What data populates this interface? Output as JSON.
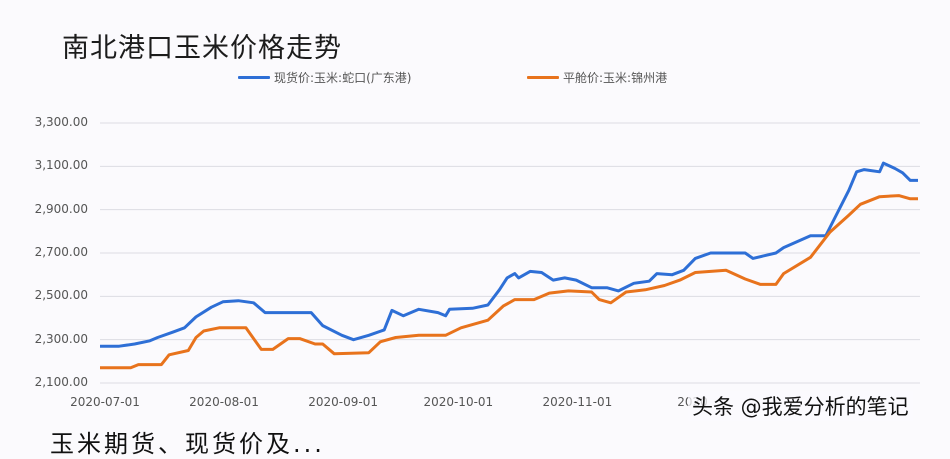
{
  "title": "南北港口玉米价格走势",
  "legend": [
    {
      "label": "现货价:玉米:蛇口(广东港)",
      "color": "#2e6fd6"
    },
    {
      "label": "平舱价:玉米:锦州港",
      "color": "#e8731c"
    }
  ],
  "watermark": "头条 @我爱分析的笔记",
  "bottom_caption": "玉米期货、现货价及...",
  "chart_data": {
    "type": "line",
    "title": "南北港口玉米价格走势",
    "xlabel": "",
    "ylabel": "",
    "ylim": [
      2100,
      3300
    ],
    "yticks": [
      "3,300.00",
      "3,100.00",
      "2,900.00",
      "2,700.00",
      "2,500.00",
      "2,300.00",
      "2,100.00"
    ],
    "ytick_values": [
      3300,
      3100,
      2900,
      2700,
      2500,
      2300,
      2100
    ],
    "xticks": [
      "2020-07-01",
      "2020-08-01",
      "2020-09-01",
      "2020-10-01",
      "2020-11-01",
      "2020-12-01"
    ],
    "xtick_display": [
      "2020-07-01",
      "2020-08-01",
      "2020-09-01",
      "2020-10-01",
      "2020-11-01",
      "2020"
    ],
    "grid": true,
    "legend_position": "top",
    "x_range_days": [
      0,
      213
    ],
    "series": [
      {
        "name": "现货价:玉米:蛇口(广东港)",
        "color": "#2e6fd6",
        "points": [
          [
            0,
            2270
          ],
          [
            5,
            2270
          ],
          [
            9,
            2280
          ],
          [
            13,
            2295
          ],
          [
            15,
            2310
          ],
          [
            19,
            2335
          ],
          [
            22,
            2355
          ],
          [
            25,
            2405
          ],
          [
            29,
            2450
          ],
          [
            32,
            2475
          ],
          [
            36,
            2480
          ],
          [
            40,
            2470
          ],
          [
            43,
            2425
          ],
          [
            49,
            2425
          ],
          [
            55,
            2425
          ],
          [
            58,
            2365
          ],
          [
            63,
            2320
          ],
          [
            66,
            2300
          ],
          [
            70,
            2320
          ],
          [
            74,
            2345
          ],
          [
            76,
            2435
          ],
          [
            79,
            2410
          ],
          [
            83,
            2440
          ],
          [
            88,
            2425
          ],
          [
            90,
            2410
          ],
          [
            91,
            2440
          ],
          [
            97,
            2445
          ],
          [
            101,
            2460
          ],
          [
            104,
            2530
          ],
          [
            106,
            2585
          ],
          [
            108,
            2605
          ],
          [
            109,
            2585
          ],
          [
            112,
            2615
          ],
          [
            115,
            2610
          ],
          [
            118,
            2575
          ],
          [
            121,
            2585
          ],
          [
            124,
            2575
          ],
          [
            128,
            2540
          ],
          [
            132,
            2540
          ],
          [
            135,
            2525
          ],
          [
            139,
            2560
          ],
          [
            143,
            2570
          ],
          [
            145,
            2605
          ],
          [
            149,
            2600
          ],
          [
            152,
            2620
          ],
          [
            155,
            2675
          ],
          [
            159,
            2700
          ],
          [
            168,
            2700
          ],
          [
            170,
            2675
          ],
          [
            176,
            2700
          ],
          [
            178,
            2725
          ],
          [
            185,
            2780
          ],
          [
            189,
            2780
          ],
          [
            191,
            2850
          ],
          [
            195,
            2990
          ],
          [
            197,
            3075
          ],
          [
            199,
            3085
          ],
          [
            203,
            3075
          ],
          [
            204,
            3115
          ],
          [
            207,
            3090
          ],
          [
            209,
            3070
          ],
          [
            211,
            3035
          ],
          [
            213,
            3035
          ]
        ]
      },
      {
        "name": "平舱价:玉米:锦州港",
        "color": "#e8731c",
        "points": [
          [
            0,
            2170
          ],
          [
            8,
            2170
          ],
          [
            10,
            2185
          ],
          [
            16,
            2185
          ],
          [
            18,
            2230
          ],
          [
            23,
            2250
          ],
          [
            25,
            2310
          ],
          [
            27,
            2340
          ],
          [
            31,
            2355
          ],
          [
            38,
            2355
          ],
          [
            42,
            2255
          ],
          [
            45,
            2255
          ],
          [
            49,
            2305
          ],
          [
            52,
            2305
          ],
          [
            56,
            2280
          ],
          [
            58,
            2280
          ],
          [
            61,
            2235
          ],
          [
            70,
            2240
          ],
          [
            73,
            2290
          ],
          [
            77,
            2310
          ],
          [
            83,
            2320
          ],
          [
            90,
            2320
          ],
          [
            94,
            2355
          ],
          [
            101,
            2390
          ],
          [
            105,
            2455
          ],
          [
            108,
            2485
          ],
          [
            113,
            2485
          ],
          [
            117,
            2515
          ],
          [
            122,
            2525
          ],
          [
            128,
            2520
          ],
          [
            130,
            2485
          ],
          [
            133,
            2470
          ],
          [
            137,
            2520
          ],
          [
            142,
            2530
          ],
          [
            147,
            2550
          ],
          [
            151,
            2575
          ],
          [
            155,
            2610
          ],
          [
            163,
            2620
          ],
          [
            168,
            2580
          ],
          [
            172,
            2555
          ],
          [
            176,
            2555
          ],
          [
            178,
            2605
          ],
          [
            185,
            2680
          ],
          [
            190,
            2795
          ],
          [
            195,
            2875
          ],
          [
            198,
            2925
          ],
          [
            203,
            2960
          ],
          [
            208,
            2965
          ],
          [
            211,
            2950
          ],
          [
            213,
            2950
          ]
        ]
      }
    ]
  }
}
